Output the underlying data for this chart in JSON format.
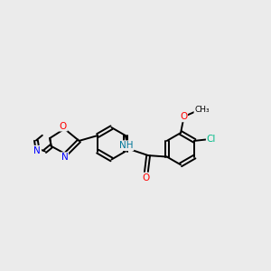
{
  "background_color": "#ebebeb",
  "bond_color": "#000000",
  "atom_colors": {
    "N": "#0000ff",
    "O": "#ff0000",
    "Cl": "#00bb88",
    "H": "#007799",
    "C": "#000000"
  },
  "bond_width": 1.4,
  "figsize": [
    3.0,
    3.0
  ],
  "dpi": 100
}
